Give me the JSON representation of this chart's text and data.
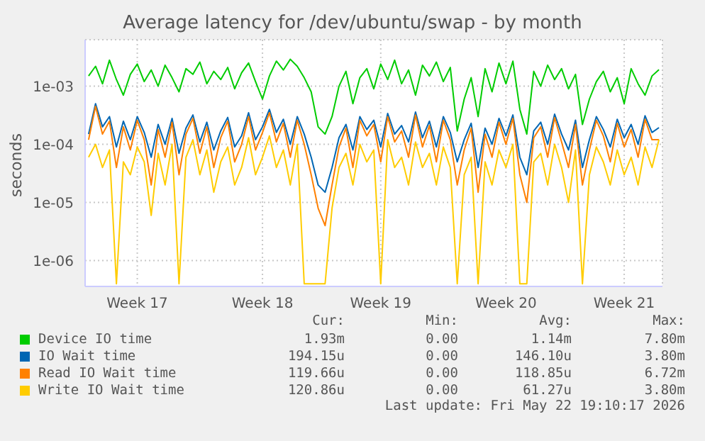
{
  "chart_data": {
    "type": "line",
    "title": "Average latency for /dev/ubuntu/swap - by month",
    "ylabel": "seconds",
    "categories": [
      null,
      null,
      null,
      null,
      null,
      null,
      null,
      "Week 17",
      null,
      null,
      null,
      null,
      null,
      null,
      null,
      null,
      null,
      null,
      null,
      null,
      null,
      null,
      null,
      null,
      null,
      "Week 18",
      null,
      null,
      null,
      null,
      null,
      null,
      null,
      null,
      null,
      null,
      null,
      null,
      null,
      null,
      null,
      null,
      "Week 19",
      null,
      null,
      null,
      null,
      null,
      null,
      null,
      null,
      null,
      null,
      null,
      null,
      null,
      null,
      null,
      null,
      null,
      "Week 20",
      null,
      null,
      null,
      null,
      null,
      null,
      null,
      null,
      null,
      null,
      null,
      null,
      null,
      null,
      null,
      null,
      "Week 21",
      null,
      null,
      null,
      null,
      null
    ],
    "series": [
      {
        "name": "Device IO time",
        "color": "#00cc00",
        "values": [
          0.0015,
          0.0022,
          0.0011,
          0.0028,
          0.0013,
          0.0007,
          0.0016,
          0.0024,
          0.0012,
          0.0019,
          0.001,
          0.0023,
          0.0014,
          0.0008,
          0.002,
          0.0016,
          0.0026,
          0.0011,
          0.0018,
          0.0013,
          0.0021,
          0.0009,
          0.0017,
          0.0025,
          0.0012,
          0.0006,
          0.0015,
          0.0027,
          0.0019,
          0.0029,
          0.0022,
          0.0014,
          0.0008,
          0.0002,
          0.00015,
          0.0003,
          0.001,
          0.0018,
          0.0005,
          0.0014,
          0.002,
          0.0009,
          0.0024,
          0.0013,
          0.0028,
          0.0011,
          0.0019,
          0.0007,
          0.0023,
          0.0015,
          0.0026,
          0.0012,
          0.0021,
          0.00017,
          0.0006,
          0.0014,
          0.0003,
          0.002,
          0.0008,
          0.0025,
          0.0011,
          0.0027,
          0.0004,
          0.00015,
          0.0018,
          0.001,
          0.0023,
          0.0013,
          0.002,
          0.0009,
          0.0016,
          0.00022,
          0.0006,
          0.0012,
          0.0018,
          0.0008,
          0.0014,
          0.0005,
          0.002,
          0.0011,
          0.0007,
          0.0015,
          0.00193
        ]
      },
      {
        "name": "IO Wait time",
        "color": "#0066b3",
        "values": [
          0.00015,
          0.0005,
          0.0002,
          0.0003,
          9e-05,
          0.00025,
          0.00012,
          0.0003,
          0.00016,
          6e-05,
          0.00022,
          0.0001,
          0.00028,
          7e-05,
          0.00019,
          0.00032,
          0.00011,
          0.00024,
          8e-05,
          0.00017,
          0.00029,
          9e-05,
          0.00014,
          0.00035,
          0.00012,
          0.0002,
          0.0004,
          0.00016,
          0.00027,
          0.0001,
          0.0003,
          0.00015,
          6e-05,
          2e-05,
          1.5e-05,
          4e-05,
          0.00013,
          0.00022,
          8e-05,
          0.0003,
          0.00018,
          0.00026,
          9e-05,
          0.00034,
          0.00015,
          0.00021,
          0.00011,
          0.00036,
          0.00013,
          0.00025,
          9e-05,
          0.0003,
          0.00016,
          5e-05,
          0.00012,
          0.00023,
          4e-05,
          0.00019,
          0.0001,
          0.00028,
          0.00014,
          0.00032,
          6e-05,
          3e-05,
          0.00017,
          0.00024,
          0.0001,
          0.00033,
          0.00015,
          8e-05,
          0.00026,
          4e-05,
          0.00012,
          0.0003,
          0.00018,
          9e-05,
          0.00027,
          0.00013,
          0.00022,
          0.0001,
          0.00031,
          0.00016,
          0.000194
        ]
      },
      {
        "name": "Read IO Wait time",
        "color": "#ff8000",
        "values": [
          0.00012,
          0.00045,
          0.00015,
          0.00025,
          4e-05,
          0.0002,
          8e-05,
          0.00026,
          0.00012,
          2e-05,
          0.00018,
          6e-05,
          0.00024,
          3e-05,
          0.00015,
          0.00028,
          7e-05,
          0.0002,
          4e-05,
          0.00013,
          0.00025,
          5e-05,
          0.0001,
          0.0003,
          8e-05,
          0.00016,
          0.00035,
          0.00011,
          0.00023,
          6e-05,
          0.00026,
          0.0001,
          3e-05,
          8e-06,
          4e-06,
          2e-05,
          9e-05,
          0.00019,
          4e-05,
          0.00026,
          0.00014,
          0.00022,
          5e-05,
          0.0003,
          0.00011,
          0.00017,
          6e-05,
          0.00032,
          9e-05,
          0.00021,
          5e-05,
          0.00026,
          0.00012,
          2e-05,
          8e-05,
          0.00019,
          1.5e-05,
          0.00015,
          6e-05,
          0.00024,
          0.0001,
          0.00028,
          3e-05,
          1e-05,
          0.00013,
          0.0002,
          6e-05,
          0.00029,
          0.00011,
          4e-05,
          0.00022,
          2e-05,
          8e-05,
          0.00026,
          0.00014,
          5e-05,
          0.00023,
          9e-05,
          0.00018,
          6e-05,
          0.00027,
          0.00012,
          0.00012
        ]
      },
      {
        "name": "Write IO Wait time",
        "color": "#ffcc00",
        "values": [
          6e-05,
          0.0001,
          4e-05,
          8e-05,
          4e-07,
          5e-05,
          3e-05,
          9e-05,
          5e-05,
          6e-06,
          7e-05,
          2e-05,
          0.0001,
          4e-07,
          6e-05,
          0.00012,
          3e-05,
          8e-05,
          1.5e-05,
          5e-05,
          9e-05,
          2e-05,
          4e-05,
          0.00013,
          3e-05,
          6e-05,
          0.00014,
          4e-05,
          8e-05,
          2e-05,
          0.0001,
          4e-07,
          4e-07,
          4e-07,
          4e-07,
          8e-06,
          4e-05,
          7e-05,
          2e-05,
          0.0001,
          5e-05,
          8e-05,
          4e-07,
          0.00012,
          4e-05,
          6e-05,
          2e-05,
          0.00011,
          4e-05,
          7e-05,
          2e-05,
          9e-05,
          4e-05,
          4e-07,
          3e-05,
          6e-05,
          4e-07,
          5e-05,
          2e-05,
          8e-05,
          4e-05,
          0.0001,
          4e-07,
          4e-07,
          5e-05,
          7e-05,
          2e-05,
          0.0001,
          4e-05,
          1e-05,
          8e-05,
          4e-07,
          3e-05,
          9e-05,
          5e-05,
          2e-05,
          8e-05,
          3e-05,
          6e-05,
          2e-05,
          9e-05,
          4e-05,
          0.00012
        ]
      }
    ],
    "ylim": [
      3.6e-07,
      0.0063
    ],
    "yticks": [
      {
        "value": 1e-06,
        "label": "1e-06"
      },
      {
        "value": 1e-05,
        "label": "1e-05"
      },
      {
        "value": 0.0001,
        "label": "1e-04"
      },
      {
        "value": 0.001,
        "label": "1e-03"
      }
    ],
    "log": "y",
    "grid": true,
    "legend": "bottom",
    "line_style": "solid",
    "annotations": [
      "Cur:",
      "Min:",
      "Avg:",
      "Max:",
      "1.93m",
      "0.00",
      "1.14m",
      "7.80m",
      "194.15u",
      "0.00",
      "146.10u",
      "3.80m",
      "119.66u",
      "0.00",
      "118.85u",
      "6.72m",
      "120.86u",
      "0.00",
      "61.27u",
      "3.80m",
      "Last update: Fri May 22 19:10:17 2026"
    ]
  }
}
